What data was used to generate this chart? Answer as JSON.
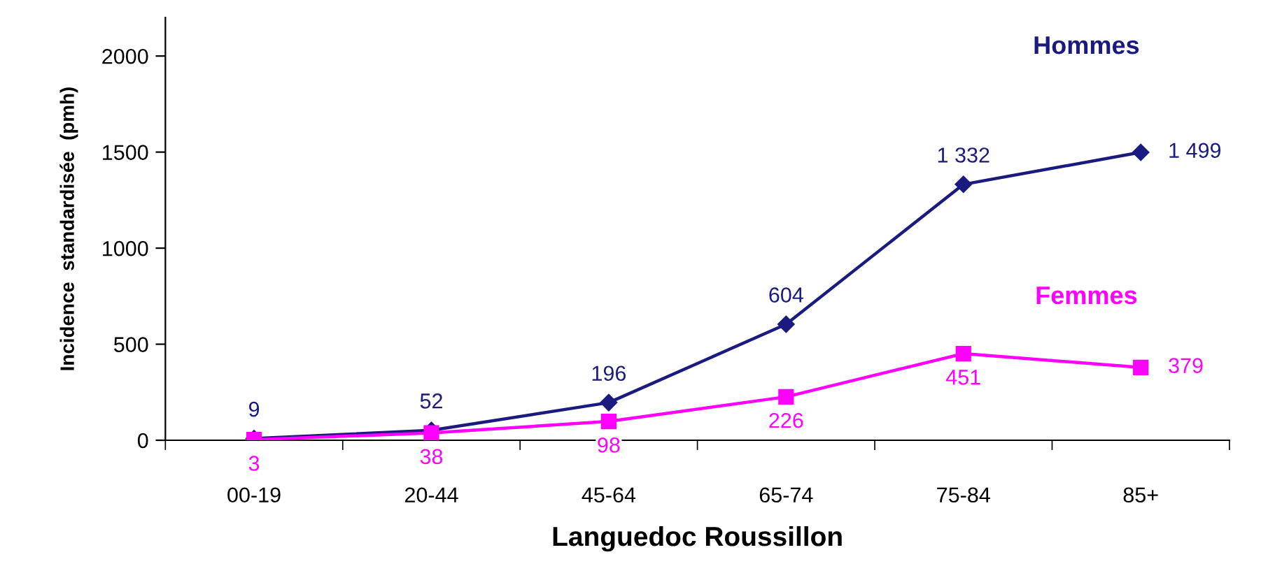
{
  "chart_data": {
    "type": "line",
    "xlabel": "Languedoc Roussillon",
    "ylabel": "Incidence  standardisée  (pmh)",
    "categories": [
      "00-19",
      "20-44",
      "45-64",
      "65-74",
      "75-84",
      "85+"
    ],
    "ylim": [
      0,
      2200
    ],
    "yticks": [
      0,
      500,
      1000,
      1500,
      2000
    ],
    "grid": false,
    "legend": false,
    "series": [
      {
        "name": "Hommes",
        "color": "#1a1a80",
        "marker": "diamond",
        "values": [
          9,
          52,
          196,
          604,
          1332,
          1499
        ],
        "value_labels": [
          "9",
          "52",
          "196",
          "604",
          "1 332",
          "1 499"
        ]
      },
      {
        "name": "Femmes",
        "color": "#ff00ff",
        "marker": "square",
        "values": [
          3,
          38,
          98,
          226,
          451,
          379
        ],
        "value_labels": [
          "3",
          "38",
          "98",
          "226",
          "451",
          "379"
        ]
      }
    ]
  }
}
